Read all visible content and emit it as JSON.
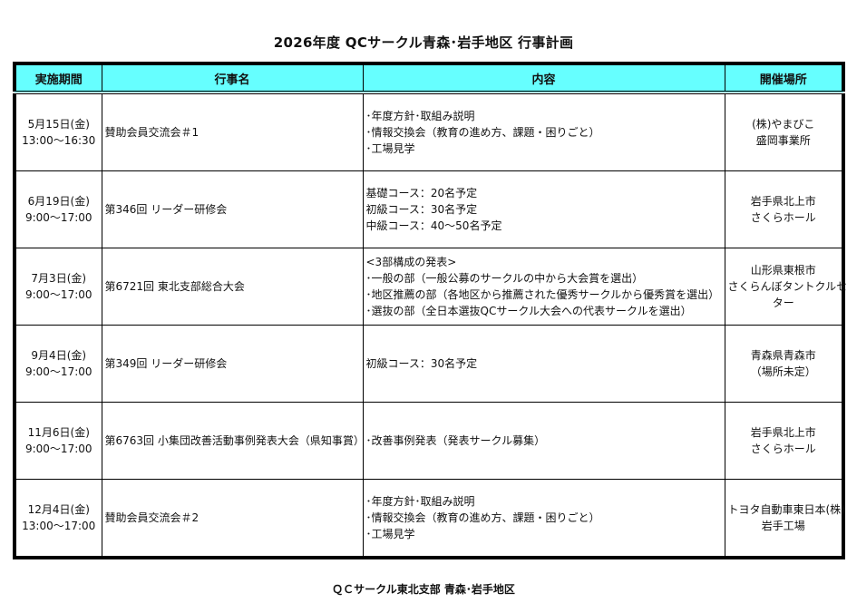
{
  "title": "2026年度  QCサークル青森･岩手地区  行事計画",
  "table": {
    "headers": [
      "実施期間",
      "行事名",
      "内容",
      "開催場所"
    ],
    "header_color": "#66ffff",
    "rows": [
      {
        "date": "5月15日(金)",
        "time": "13:00～16:30",
        "name": "賛助会員交流会＃1",
        "content": [
          "･年度方針･取組み説明",
          "･情報交換会（教育の進め方、課題・困りごと）",
          "･工場見学"
        ],
        "place": [
          "(株)やまびこ",
          "盛岡事業所"
        ]
      },
      {
        "date": "6月19日(金)",
        "time": "9:00～17:00",
        "name": "第346回 リーダー研修会",
        "content": [
          "基礎コース：20名予定",
          "初級コース：30名予定",
          "中級コース：40～50名予定"
        ],
        "place": [
          "岩手県北上市",
          "さくらホール"
        ]
      },
      {
        "date": "7月3日(金)",
        "time": "9:00～17:00",
        "name": "第6721回 東北支部総合大会",
        "content": [
          "<3部構成の発表>",
          "･一般の部（一般公募のサークルの中から大会賞を選出）",
          "･地区推薦の部（各地区から推薦された優秀サークルから優秀賞を選出）",
          "･選抜の部（全日本選抜QCサークル大会への代表サークルを選出）"
        ],
        "place": [
          "山形県東根市",
          "さくらんぼタントクルセン",
          "ター"
        ]
      },
      {
        "date": "9月4日(金)",
        "time": "9:00～17:00",
        "name": "第349回 リーダー研修会",
        "content": [
          "初級コース：30名予定"
        ],
        "place": [
          "青森県青森市",
          "（場所未定）"
        ]
      },
      {
        "date": "11月6日(金)",
        "time": "9:00～17:00",
        "name": "第6763回 小集団改善活動事例発表大会（県知事賞）",
        "content": [
          "･改善事例発表（発表サークル募集）"
        ],
        "place": [
          "岩手県北上市",
          "さくらホール"
        ]
      },
      {
        "date": "12月4日(金)",
        "time": "13:00～17:00",
        "name": "賛助会員交流会＃2",
        "content": [
          "･年度方針･取組み説明",
          "･情報交換会（教育の進め方、課題・困りごと）",
          "･工場見学"
        ],
        "place": [
          "トヨタ自動車東日本(株)",
          "岩手工場"
        ]
      }
    ]
  },
  "footer": "ＱＣサークル東北支部  青森･岩手地区"
}
